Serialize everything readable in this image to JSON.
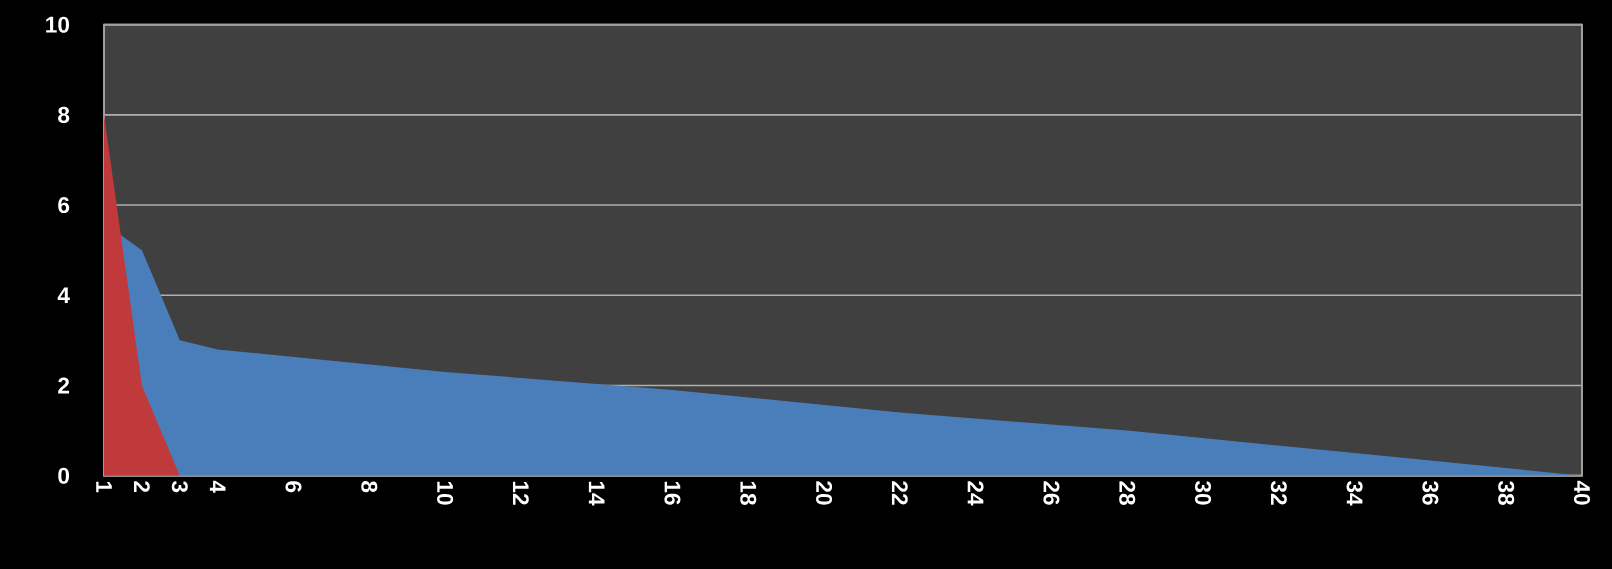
{
  "chart_data": {
    "type": "area",
    "xlim": [
      1,
      40
    ],
    "ylim": [
      0,
      10
    ],
    "xticks": [
      1,
      2,
      3,
      4,
      6,
      8,
      10,
      12,
      14,
      16,
      18,
      20,
      22,
      24,
      26,
      28,
      30,
      32,
      34,
      36,
      38,
      40
    ],
    "yticks": [
      0,
      2,
      4,
      6,
      8,
      10
    ],
    "grid": "y",
    "series": [
      {
        "color": "#4a7ebb",
        "x": [
          1,
          2,
          3,
          4,
          10,
          16,
          22,
          28,
          34,
          40
        ],
        "values": [
          5.6,
          5.0,
          3.0,
          2.8,
          2.3,
          1.9,
          1.4,
          1.0,
          0.5,
          0
        ]
      },
      {
        "color": "#c0393b",
        "x": [
          1,
          2,
          3
        ],
        "values": [
          8,
          2,
          0
        ]
      }
    ]
  }
}
